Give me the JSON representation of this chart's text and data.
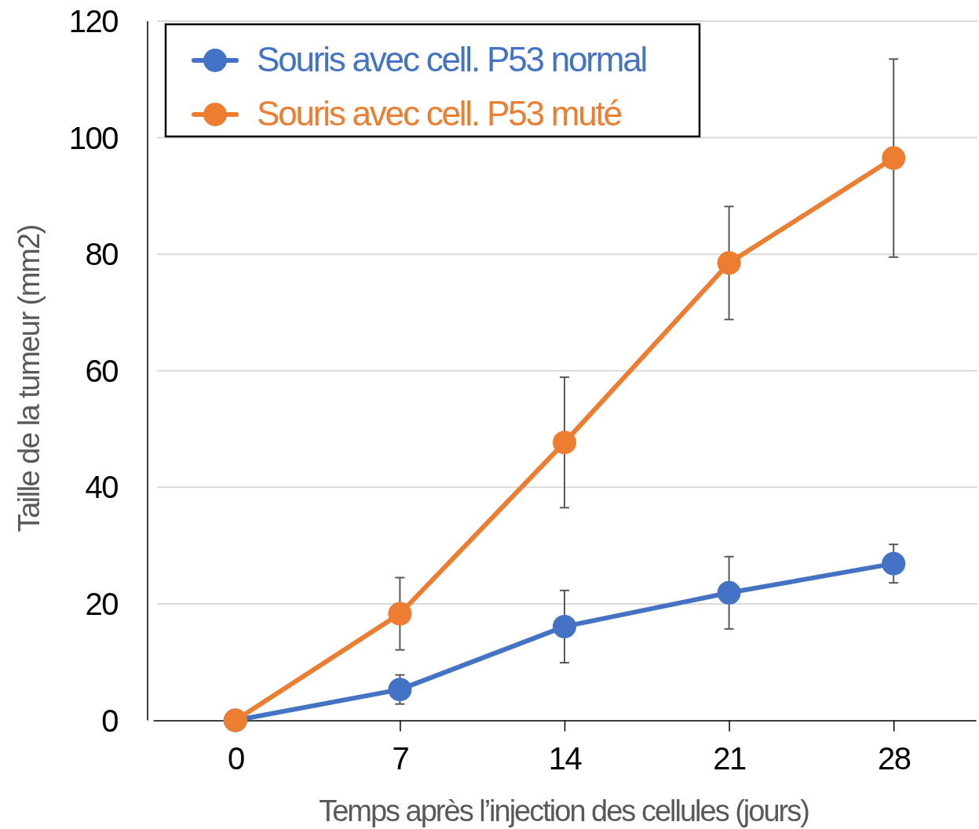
{
  "chart_data": {
    "type": "line",
    "xlabel": "Temps après l’injection des cellules (jours)",
    "ylabel": "Taille de la tumeur (mm2)",
    "categories": [
      "0",
      "7",
      "14",
      "21",
      "28"
    ],
    "series": [
      {
        "name": "Souris avec cell. P53 normal",
        "color": "#4472c4",
        "values": [
          0,
          5.3,
          16.1,
          21.9,
          26.9
        ],
        "errors": [
          null,
          2.5,
          6.2,
          6.2,
          3.3
        ]
      },
      {
        "name": "Souris avec cell. P53 muté",
        "color": "#ed7d31",
        "values": [
          0,
          18.3,
          47.7,
          78.5,
          96.5
        ],
        "errors": [
          null,
          6.2,
          11.2,
          9.7,
          17
        ]
      }
    ],
    "ylim": [
      0,
      120
    ],
    "yticks": [
      0,
      20,
      40,
      60,
      80,
      100,
      120
    ],
    "grid": "y",
    "legend": "top left",
    "marker": "circle",
    "line_style": "solid"
  }
}
